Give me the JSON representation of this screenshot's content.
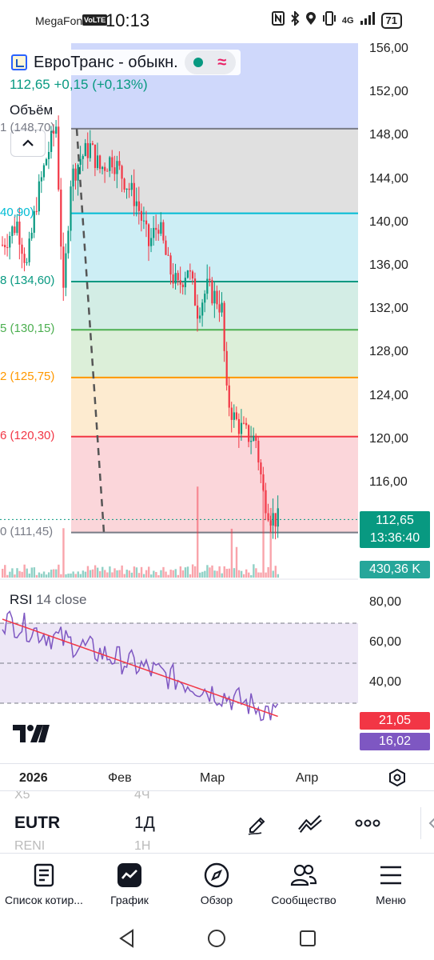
{
  "status_bar": {
    "carrier": "MegaFon",
    "volte": "VoLTE",
    "time": "10:13",
    "network": "4G",
    "battery": "71"
  },
  "header": {
    "symbol_title": "ЕвроТранс - обыкн.",
    "price_line": "112,65  +0,15 (+0,13%)",
    "volume_indicator": "Объём",
    "colors": {
      "up": "#089981",
      "down": "#f23645",
      "accent": "#2962ff"
    }
  },
  "price_axis": {
    "labels": [
      "156,00",
      "152,00",
      "148,00",
      "144,00",
      "140,00",
      "136,00",
      "132,00",
      "128,00",
      "124,00",
      "120,00",
      "116,00"
    ],
    "current_price": "112,65",
    "countdown": "13:36:40",
    "volume_value": "430,36 K"
  },
  "fib_levels": [
    {
      "label": "1 (148,70)",
      "color": "#787b86"
    },
    {
      "label": "40,90)",
      "color": "#00bcd4"
    },
    {
      "label": "8 (134,60)",
      "color": "#089981"
    },
    {
      "label": "5 (130,15)",
      "color": "#4caf50"
    },
    {
      "label": "2 (125,75)",
      "color": "#ff9800"
    },
    {
      "label": "6 (120,30)",
      "color": "#f23645"
    },
    {
      "label": "0 (111,45)",
      "color": "#787b86"
    }
  ],
  "rsi": {
    "title": "RSI",
    "params": "14 close",
    "axis_labels": [
      "80,00",
      "60,00",
      "40,00"
    ],
    "rsi_value": "21,05",
    "signal_value": "16,02",
    "colors": {
      "rsi_line": "#7e57c2",
      "ma_line": "#f23645"
    }
  },
  "time_axis": {
    "labels": [
      "2026",
      "Фев",
      "Мар",
      "Апр"
    ]
  },
  "toolbar": {
    "ghost_top_left": "X5",
    "ghost_top_right": "4Ч",
    "symbol": "EUTR",
    "interval": "1Д",
    "ghost_bottom_left": "RENI",
    "ghost_bottom_right": "1Н",
    "icons": [
      "pencil-icon",
      "trend-icon",
      "more-icon",
      "chevron-left-icon"
    ]
  },
  "bottom_nav": {
    "items": [
      {
        "label": "Список котир...",
        "icon": "watchlist-icon"
      },
      {
        "label": "График",
        "icon": "chart-icon"
      },
      {
        "label": "Обзор",
        "icon": "compass-icon"
      },
      {
        "label": "Сообщество",
        "icon": "community-icon"
      },
      {
        "label": "Меню",
        "icon": "menu-icon"
      }
    ]
  }
}
